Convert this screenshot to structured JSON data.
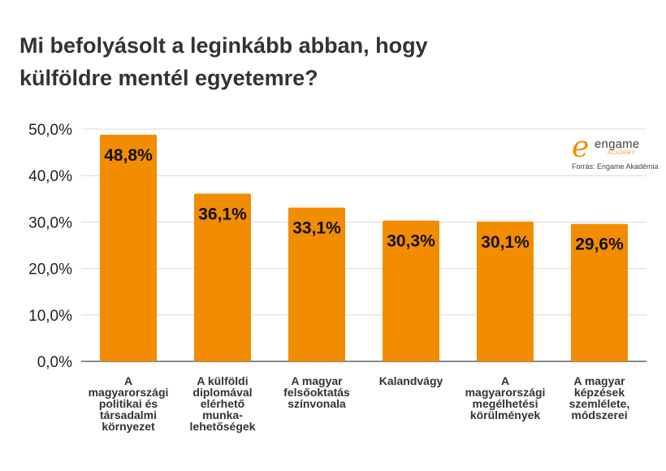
{
  "chart_data": {
    "type": "bar",
    "title": [
      "Mi befolyásolt a leginkább abban, hogy",
      "külföldre mentél egyetemre?"
    ],
    "categories": [
      [
        "A",
        "magyarországi",
        "politikai és",
        "társadalmi",
        "környezet"
      ],
      [
        "A külföldi",
        "diplomával",
        "elérhető",
        "munka-",
        "lehetőségek"
      ],
      [
        "A magyar",
        "felsőoktatás",
        "színvonala"
      ],
      [
        "Kalandvágy"
      ],
      [
        "A",
        "magyarországi",
        "megélhetési",
        "körülmények"
      ],
      [
        "A magyar",
        "képzések",
        "szemlélete,",
        "módszerei"
      ]
    ],
    "values": [
      48.8,
      36.1,
      33.1,
      30.3,
      30.1,
      29.6
    ],
    "value_labels": [
      "48,8%",
      "36,1%",
      "33,1%",
      "30,3%",
      "30,1%",
      "29,6%"
    ],
    "yticks": [
      0,
      10,
      20,
      30,
      40,
      50
    ],
    "ytick_labels": [
      "0,0%",
      "10,0%",
      "20,0%",
      "30,0%",
      "40,0%",
      "50,0%"
    ],
    "ylim": [
      0,
      50
    ],
    "grid": true,
    "bar_color": "#f28c00",
    "source": "Forrás: Engame Akadémia"
  },
  "logo": {
    "mark": "e",
    "word": "engame",
    "sub": "ACADEMY"
  }
}
